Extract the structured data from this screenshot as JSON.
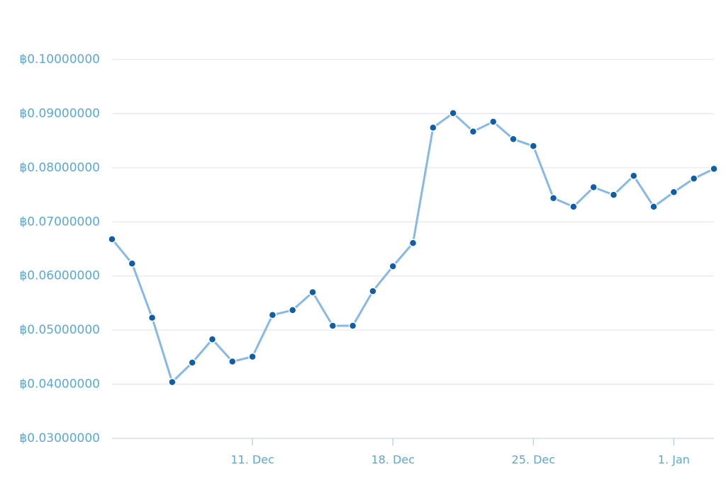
{
  "chart_data": {
    "type": "line",
    "title": "",
    "xlabel": "",
    "ylabel": "",
    "x_start": "2017-12-04",
    "x_end": "2018-01-03",
    "ylim": [
      0.03,
      0.1
    ],
    "grid": true,
    "legend": "none",
    "colors": {
      "line": "#86b9e8",
      "point": "#0f5ea8",
      "label": "#5aa9d6",
      "grid": "#e4e8ee"
    },
    "y_ticks": [
      {
        "value": 0.03,
        "label": "฿0.03000000"
      },
      {
        "value": 0.04,
        "label": "฿0.04000000"
      },
      {
        "value": 0.05,
        "label": "฿0.05000000"
      },
      {
        "value": 0.06,
        "label": "฿0.06000000"
      },
      {
        "value": 0.07,
        "label": "฿0.07000000"
      },
      {
        "value": 0.08,
        "label": "฿0.08000000"
      },
      {
        "value": 0.09,
        "label": "฿0.09000000"
      },
      {
        "value": 0.1,
        "label": "฿0.10000000"
      }
    ],
    "x_ticks": [
      {
        "date": "2017-12-11",
        "label": "11. Dec"
      },
      {
        "date": "2017-12-18",
        "label": "18. Dec"
      },
      {
        "date": "2017-12-25",
        "label": "25. Dec"
      },
      {
        "date": "2018-01-01",
        "label": "1. Jan"
      }
    ],
    "series": [
      {
        "points": [
          {
            "x": "2017-12-04",
            "y": 0.0668
          },
          {
            "x": "2017-12-05",
            "y": 0.0623
          },
          {
            "x": "2017-12-06",
            "y": 0.0523
          },
          {
            "x": "2017-12-07",
            "y": 0.0404
          },
          {
            "x": "2017-12-08",
            "y": 0.044
          },
          {
            "x": "2017-12-09",
            "y": 0.0483
          },
          {
            "x": "2017-12-10",
            "y": 0.0442
          },
          {
            "x": "2017-12-11",
            "y": 0.0451
          },
          {
            "x": "2017-12-12",
            "y": 0.0528
          },
          {
            "x": "2017-12-13",
            "y": 0.0537
          },
          {
            "x": "2017-12-14",
            "y": 0.057
          },
          {
            "x": "2017-12-15",
            "y": 0.0508
          },
          {
            "x": "2017-12-16",
            "y": 0.0508
          },
          {
            "x": "2017-12-17",
            "y": 0.0572
          },
          {
            "x": "2017-12-18",
            "y": 0.0618
          },
          {
            "x": "2017-12-19",
            "y": 0.0661
          },
          {
            "x": "2017-12-20",
            "y": 0.0874
          },
          {
            "x": "2017-12-21",
            "y": 0.0901
          },
          {
            "x": "2017-12-22",
            "y": 0.0867
          },
          {
            "x": "2017-12-23",
            "y": 0.0885
          },
          {
            "x": "2017-12-24",
            "y": 0.0853
          },
          {
            "x": "2017-12-25",
            "y": 0.084
          },
          {
            "x": "2017-12-26",
            "y": 0.0744
          },
          {
            "x": "2017-12-27",
            "y": 0.0728
          },
          {
            "x": "2017-12-28",
            "y": 0.0764
          },
          {
            "x": "2017-12-29",
            "y": 0.075
          },
          {
            "x": "2017-12-30",
            "y": 0.0785
          },
          {
            "x": "2017-12-31",
            "y": 0.0728
          },
          {
            "x": "2018-01-01",
            "y": 0.0755
          },
          {
            "x": "2018-01-02",
            "y": 0.078
          },
          {
            "x": "2018-01-03",
            "y": 0.0798
          }
        ]
      }
    ]
  }
}
